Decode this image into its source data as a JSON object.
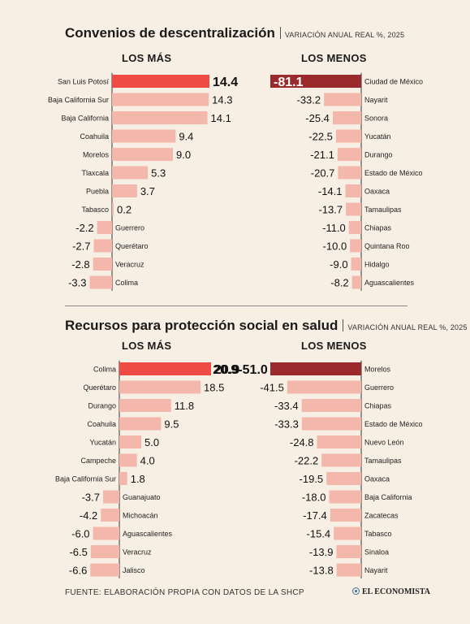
{
  "colors": {
    "background": "#f7efe3",
    "bar_default": "#f4b7ab",
    "bar_top_mas": "#ef4a43",
    "bar_top_menos": "#9b2a2c"
  },
  "footer": {
    "source": "FUENTE: ELABORACIÓN PROPIA CON DATOS DE LA SHCP",
    "brand": "EL ECONOMISTA"
  },
  "chart_data": [
    {
      "type": "bar",
      "title": "Convenios de descentralización",
      "subtitle": "VARIACIÓN ANUAL REAL %, 2025",
      "panels": [
        {
          "heading": "LOS MÁS",
          "categories": [
            "San Luis Potosí",
            "Baja California Sur",
            "Baja California",
            "Coahuila",
            "Morelos",
            "Tlaxcala",
            "Puebla",
            "Tabasco",
            "Guerrero",
            "Querétaro",
            "Veracruz",
            "Colima"
          ],
          "values": [
            14.4,
            14.3,
            14.1,
            9.4,
            9.0,
            5.3,
            3.7,
            0.2,
            -2.2,
            -2.7,
            -2.8,
            -3.3
          ],
          "value_labels": [
            "14.4",
            "14.3",
            "14.1",
            "9.4",
            "9.0",
            "5.3",
            "3.7",
            "0.2",
            "-2.2",
            "-2.7",
            "-2.8",
            "-3.3"
          ]
        },
        {
          "heading": "LOS MENOS",
          "categories": [
            "Ciudad de México",
            "Nayarit",
            "Sonora",
            "Yucatán",
            "Durango",
            "Estado de México",
            "Oaxaca",
            "Tamaulipas",
            "Chiapas",
            "Quintana Roo",
            "Hidalgo",
            "Aguascalientes"
          ],
          "values": [
            -81.1,
            -33.2,
            -25.4,
            -22.5,
            -21.1,
            -20.7,
            -14.1,
            -13.7,
            -11.0,
            -10.0,
            -9.0,
            -8.2
          ],
          "value_labels": [
            "-81.1",
            "-33.2",
            "-25.4",
            "-22.5",
            "-21.1",
            "-20.7",
            "-14.1",
            "-13.7",
            "-11.0",
            "-10.0",
            "-9.0",
            "-8.2"
          ]
        }
      ]
    },
    {
      "type": "bar",
      "title": "Recursos para protección social en salud",
      "subtitle": "VARIACIÓN ANUAL REAL %, 2025",
      "panels": [
        {
          "heading": "LOS MÁS",
          "categories": [
            "Colima",
            "Querétaro",
            "Durango",
            "Coahuila",
            "Yucatán",
            "Campeche",
            "Baja California Sur",
            "Guanajuato",
            "Michoacán",
            "Aguascalientes",
            "Veracruz",
            "Jalisco"
          ],
          "values": [
            20.9,
            18.5,
            11.8,
            9.5,
            5.0,
            4.0,
            1.8,
            -3.7,
            -4.2,
            -6.0,
            -6.5,
            -6.6
          ],
          "value_labels": [
            "20.9",
            "18.5",
            "11.8",
            "9.5",
            "5.0",
            "4.0",
            "1.8",
            "-3.7",
            "-4.2",
            "-6.0",
            "-6.5",
            "-6.6"
          ]
        },
        {
          "heading": "LOS MENOS",
          "categories": [
            "Morelos",
            "Guerrero",
            "Chiapas",
            "Estado de México",
            "Nuevo León",
            "Tamaulipas",
            "Oaxaca",
            "Baja California",
            "Zacatecas",
            "Tabasco",
            "Sinaloa",
            "Nayarit"
          ],
          "values": [
            -51.0,
            -41.5,
            -33.4,
            -33.3,
            -24.8,
            -22.2,
            -19.5,
            -18.0,
            -17.4,
            -15.4,
            -13.9,
            -13.8
          ],
          "value_labels": [
            "-51.0",
            "-41.5",
            "-33.4",
            "-33.3",
            "-24.8",
            "-22.2",
            "-19.5",
            "-18.0",
            "-17.4",
            "-15.4",
            "-13.9",
            "-13.8"
          ]
        }
      ]
    }
  ]
}
